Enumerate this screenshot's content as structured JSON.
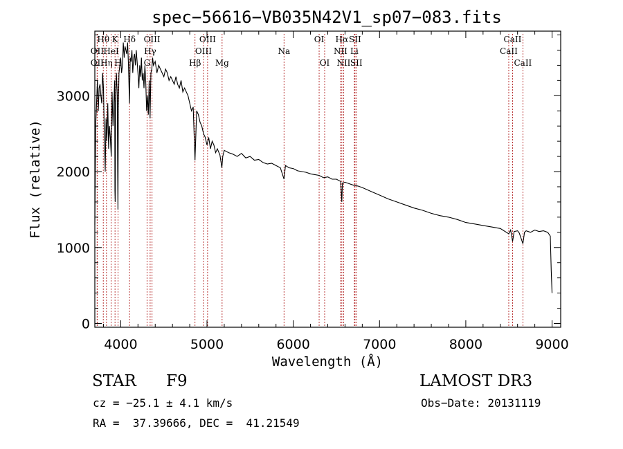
{
  "chart_data": {
    "type": "line",
    "title": "spec−56616−VB035N42V1_sp07−083.fits",
    "xlabel": "Wavelength (Å)",
    "ylabel": "Flux (relative)",
    "xlim": [
      3700,
      9100
    ],
    "ylim": [
      -50,
      3850
    ],
    "x_ticks": [
      4000,
      5000,
      6000,
      7000,
      8000,
      9000
    ],
    "y_ticks": [
      0,
      1000,
      2000,
      3000
    ],
    "series": [
      {
        "name": "flux",
        "x": [
          3700,
          3710,
          3720,
          3730,
          3740,
          3750,
          3760,
          3770,
          3780,
          3790,
          3800,
          3810,
          3820,
          3830,
          3840,
          3850,
          3860,
          3870,
          3880,
          3890,
          3900,
          3910,
          3920,
          3930,
          3933,
          3936,
          3940,
          3950,
          3960,
          3965,
          3968,
          3972,
          3980,
          3990,
          4000,
          4010,
          4020,
          4030,
          4040,
          4050,
          4060,
          4070,
          4080,
          4090,
          4101,
          4110,
          4120,
          4130,
          4140,
          4150,
          4160,
          4170,
          4180,
          4190,
          4200,
          4210,
          4220,
          4230,
          4240,
          4250,
          4260,
          4270,
          4280,
          4290,
          4300,
          4310,
          4320,
          4330,
          4340,
          4350,
          4360,
          4370,
          4380,
          4400,
          4420,
          4440,
          4460,
          4480,
          4500,
          4520,
          4540,
          4560,
          4580,
          4600,
          4620,
          4640,
          4660,
          4680,
          4700,
          4720,
          4740,
          4760,
          4780,
          4800,
          4820,
          4840,
          4861,
          4880,
          4900,
          4920,
          4940,
          4960,
          4980,
          5000,
          5020,
          5040,
          5060,
          5080,
          5100,
          5120,
          5150,
          5172,
          5183,
          5200,
          5250,
          5300,
          5350,
          5400,
          5450,
          5500,
          5550,
          5600,
          5650,
          5700,
          5750,
          5800,
          5850,
          5893,
          5910,
          5950,
          6000,
          6050,
          6100,
          6150,
          6200,
          6250,
          6300,
          6350,
          6400,
          6450,
          6500,
          6550,
          6563,
          6570,
          6600,
          6650,
          6700,
          6750,
          6800,
          6900,
          7000,
          7100,
          7200,
          7300,
          7400,
          7500,
          7600,
          7700,
          7800,
          7900,
          8000,
          8100,
          8200,
          8300,
          8400,
          8498,
          8520,
          8542,
          8560,
          8600,
          8620,
          8662,
          8680,
          8700,
          8750,
          8800,
          8850,
          8900,
          8950,
          8980,
          8990,
          9000
        ],
        "values": [
          1300,
          2600,
          2900,
          3200,
          2800,
          3100,
          3150,
          3000,
          2900,
          3300,
          3100,
          2500,
          2000,
          2700,
          2400,
          2900,
          2300,
          2600,
          2450,
          2200,
          3050,
          2600,
          2900,
          3200,
          1750,
          1600,
          2900,
          3300,
          3000,
          2000,
          1500,
          2800,
          3300,
          3400,
          3500,
          3300,
          3400,
          3700,
          3500,
          3650,
          3600,
          3550,
          3700,
          3400,
          2900,
          3500,
          3450,
          3600,
          3300,
          3500,
          3550,
          3400,
          3600,
          3450,
          3300,
          3100,
          3400,
          3250,
          3500,
          3200,
          3300,
          3100,
          3400,
          3200,
          2800,
          3000,
          2750,
          3200,
          2700,
          3300,
          3350,
          3500,
          3400,
          3450,
          3300,
          3400,
          3350,
          3300,
          3250,
          3350,
          3300,
          3200,
          3250,
          3200,
          3150,
          3250,
          3150,
          3100,
          3200,
          3050,
          3100,
          3050,
          3000,
          2900,
          2800,
          2850,
          2150,
          2800,
          2750,
          2650,
          2600,
          2500,
          2450,
          2350,
          2450,
          2300,
          2400,
          2350,
          2250,
          2300,
          2220,
          2050,
          2200,
          2280,
          2250,
          2230,
          2200,
          2240,
          2180,
          2200,
          2150,
          2160,
          2120,
          2100,
          2110,
          2080,
          2050,
          1900,
          2080,
          2050,
          2040,
          2010,
          2000,
          1990,
          1970,
          1960,
          1950,
          1920,
          1930,
          1900,
          1900,
          1870,
          1600,
          1850,
          1860,
          1840,
          1820,
          1810,
          1790,
          1740,
          1690,
          1640,
          1600,
          1560,
          1520,
          1490,
          1450,
          1420,
          1400,
          1370,
          1330,
          1310,
          1290,
          1270,
          1250,
          1180,
          1230,
          1080,
          1210,
          1220,
          1190,
          1050,
          1200,
          1220,
          1200,
          1230,
          1210,
          1220,
          1200,
          1150,
          700,
          400
        ]
      }
    ],
    "spectral_lines": [
      {
        "label": "Hθ",
        "x": 3798,
        "row": 1
      },
      {
        "label": "OII",
        "x": 3727,
        "row": 2
      },
      {
        "label": "OII",
        "x": 3727,
        "row": 3
      },
      {
        "label": "Hη",
        "x": 3835,
        "row": 3
      },
      {
        "label": "K",
        "x": 3934,
        "row": 1
      },
      {
        "label": "HeI",
        "x": 3889,
        "row": 2
      },
      {
        "label": "H",
        "x": 3969,
        "row": 3
      },
      {
        "label": "Hδ",
        "x": 4102,
        "row": 1
      },
      {
        "label": "OIII",
        "x": 4363,
        "row": 1
      },
      {
        "label": "Hγ",
        "x": 4341,
        "row": 2
      },
      {
        "label": "G",
        "x": 4305,
        "row": 3
      },
      {
        "label": "OIII",
        "x": 5007,
        "row": 1
      },
      {
        "label": "OIII",
        "x": 4959,
        "row": 2
      },
      {
        "label": "Hβ",
        "x": 4861,
        "row": 3
      },
      {
        "label": "Mg",
        "x": 5175,
        "row": 3
      },
      {
        "label": "Na",
        "x": 5893,
        "row": 2
      },
      {
        "label": "OI",
        "x": 6300,
        "row": 1
      },
      {
        "label": "OI",
        "x": 6364,
        "row": 3
      },
      {
        "label": "Hα",
        "x": 6563,
        "row": 1
      },
      {
        "label": "SII",
        "x": 6716,
        "row": 1
      },
      {
        "label": "NII",
        "x": 6548,
        "row": 2
      },
      {
        "label": "Li",
        "x": 6708,
        "row": 2
      },
      {
        "label": "NII",
        "x": 6584,
        "row": 3
      },
      {
        "label": "SII",
        "x": 6731,
        "row": 3
      },
      {
        "label": "CaII",
        "x": 8542,
        "row": 1
      },
      {
        "label": "CaII",
        "x": 8498,
        "row": 2
      },
      {
        "label": "CaII",
        "x": 8662,
        "row": 3
      }
    ]
  },
  "info": {
    "object_class": "STAR",
    "subclass": "F9",
    "survey": "LAMOST DR3",
    "cz": "cz = −25.1 ± 4.1 km/s",
    "obs_date": "Obs−Date: 20131119",
    "coords": "RA =  37.39666, DEC =  41.21549"
  },
  "colors": {
    "line_marker": "#b22222",
    "spectrum": "#000000"
  }
}
